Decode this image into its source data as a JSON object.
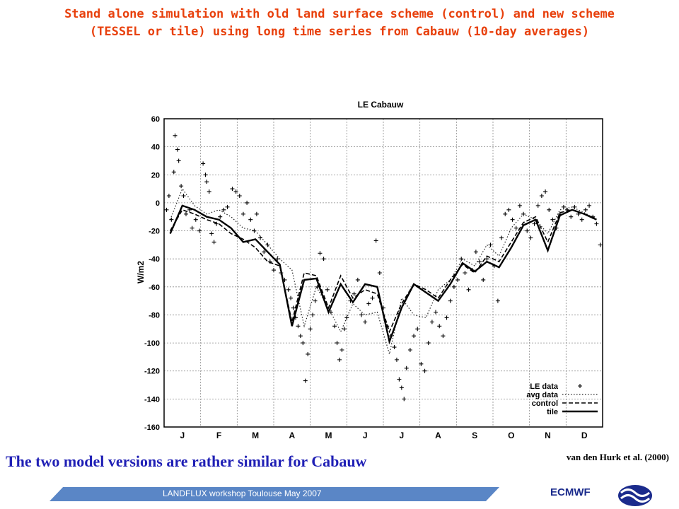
{
  "slide": {
    "title_line1": "Stand alone simulation with old land surface scheme (control) and new scheme",
    "title_line2": "(TESSEL or tile) using long time series from Cabauw (10-day averages)",
    "caption": "The two model versions are rather similar for Cabauw",
    "citation": "van den Hurk et al. (2000)",
    "footer": "LANDFLUX workshop Toulouse May 2007",
    "org": "ECMWF",
    "logo_icon": "ecmwf-logo-icon",
    "colors": {
      "title": "#e8400c",
      "caption": "#1f1fb5",
      "footer_bar": "#5a86c6",
      "org": "#1b2b8c"
    }
  },
  "chart_data": {
    "type": "line",
    "title": "LE Cabauw",
    "xlabel": "",
    "ylabel": "W/m2",
    "ylim": [
      -160,
      60
    ],
    "yticks": [
      60,
      40,
      20,
      0,
      -20,
      -40,
      -60,
      -80,
      -100,
      -120,
      -140,
      -160
    ],
    "xticks": [
      "J",
      "F",
      "M",
      "A",
      "M",
      "J",
      "J",
      "A",
      "S",
      "O",
      "N",
      "D"
    ],
    "xlim": [
      0,
      36
    ],
    "grid": true,
    "legend_position": "bottom-right",
    "x": [
      0.5,
      1.5,
      2.5,
      3.5,
      4.5,
      5.5,
      6.5,
      7.5,
      8.5,
      9.5,
      10.5,
      11.5,
      12.5,
      13.5,
      14.5,
      15.5,
      16.5,
      17.5,
      18.5,
      19.5,
      20.5,
      21.5,
      22.5,
      23.5,
      24.5,
      25.5,
      26.5,
      27.5,
      28.5,
      29.5,
      30.5,
      31.5,
      32.5,
      33.5,
      34.5,
      35.5
    ],
    "series": [
      {
        "name": "LE data",
        "style": "markers",
        "points": [
          [
            0.2,
            -5
          ],
          [
            0.4,
            5
          ],
          [
            0.6,
            -12
          ],
          [
            0.8,
            22
          ],
          [
            0.9,
            48
          ],
          [
            1.1,
            38
          ],
          [
            1.2,
            30
          ],
          [
            1.4,
            12
          ],
          [
            1.6,
            5
          ],
          [
            1.8,
            -8
          ],
          [
            2.1,
            -5
          ],
          [
            2.3,
            -18
          ],
          [
            2.6,
            -12
          ],
          [
            2.9,
            -20
          ],
          [
            3.2,
            28
          ],
          [
            3.4,
            20
          ],
          [
            3.5,
            15
          ],
          [
            3.7,
            8
          ],
          [
            3.9,
            -22
          ],
          [
            4.1,
            -28
          ],
          [
            4.3,
            -15
          ],
          [
            4.6,
            -10
          ],
          [
            4.9,
            -5
          ],
          [
            5.2,
            -3
          ],
          [
            5.6,
            10
          ],
          [
            5.9,
            8
          ],
          [
            6.2,
            5
          ],
          [
            6.5,
            -8
          ],
          [
            6.8,
            0
          ],
          [
            7.1,
            -12
          ],
          [
            7.4,
            -20
          ],
          [
            7.6,
            -8
          ],
          [
            7.9,
            -25
          ],
          [
            8.2,
            -35
          ],
          [
            8.5,
            -30
          ],
          [
            8.7,
            -42
          ],
          [
            9.0,
            -48
          ],
          [
            9.3,
            -40
          ],
          [
            9.6,
            -50
          ],
          [
            9.9,
            -55
          ],
          [
            10.2,
            -62
          ],
          [
            10.4,
            -68
          ],
          [
            10.6,
            -75
          ],
          [
            10.8,
            -82
          ],
          [
            11.0,
            -88
          ],
          [
            11.2,
            -95
          ],
          [
            11.4,
            -100
          ],
          [
            11.6,
            -127
          ],
          [
            11.8,
            -108
          ],
          [
            12.0,
            -90
          ],
          [
            12.2,
            -80
          ],
          [
            12.4,
            -70
          ],
          [
            12.6,
            -60
          ],
          [
            12.8,
            -36
          ],
          [
            13.1,
            -40
          ],
          [
            13.4,
            -62
          ],
          [
            13.7,
            -78
          ],
          [
            14.0,
            -88
          ],
          [
            14.2,
            -100
          ],
          [
            14.4,
            -112
          ],
          [
            14.6,
            -105
          ],
          [
            14.8,
            -90
          ],
          [
            15.0,
            -82
          ],
          [
            15.3,
            -70
          ],
          [
            15.6,
            -65
          ],
          [
            15.9,
            -55
          ],
          [
            16.2,
            -80
          ],
          [
            16.5,
            -85
          ],
          [
            16.8,
            -72
          ],
          [
            17.1,
            -68
          ],
          [
            17.4,
            -27
          ],
          [
            17.7,
            -50
          ],
          [
            18.0,
            -75
          ],
          [
            18.3,
            -88
          ],
          [
            18.6,
            -95
          ],
          [
            18.9,
            -103
          ],
          [
            19.1,
            -112
          ],
          [
            19.3,
            -126
          ],
          [
            19.5,
            -132
          ],
          [
            19.7,
            -140
          ],
          [
            19.9,
            -118
          ],
          [
            20.2,
            -105
          ],
          [
            20.5,
            -95
          ],
          [
            20.8,
            -90
          ],
          [
            21.1,
            -115
          ],
          [
            21.4,
            -120
          ],
          [
            21.7,
            -100
          ],
          [
            22.0,
            -85
          ],
          [
            22.3,
            -78
          ],
          [
            22.6,
            -88
          ],
          [
            22.9,
            -95
          ],
          [
            23.2,
            -82
          ],
          [
            23.5,
            -70
          ],
          [
            23.8,
            -60
          ],
          [
            24.1,
            -55
          ],
          [
            24.4,
            -40
          ],
          [
            24.7,
            -50
          ],
          [
            25.0,
            -62
          ],
          [
            25.3,
            -48
          ],
          [
            25.6,
            -35
          ],
          [
            25.9,
            -42
          ],
          [
            26.2,
            -55
          ],
          [
            26.5,
            -40
          ],
          [
            26.8,
            -30
          ],
          [
            27.1,
            -45
          ],
          [
            27.4,
            -70
          ],
          [
            27.7,
            -25
          ],
          [
            28.0,
            -8
          ],
          [
            28.3,
            -5
          ],
          [
            28.6,
            -12
          ],
          [
            28.9,
            -18
          ],
          [
            29.2,
            -2
          ],
          [
            29.5,
            -8
          ],
          [
            29.8,
            -20
          ],
          [
            30.1,
            -25
          ],
          [
            30.4,
            -15
          ],
          [
            30.7,
            -2
          ],
          [
            31.0,
            5
          ],
          [
            31.3,
            8
          ],
          [
            31.6,
            -5
          ],
          [
            31.9,
            -12
          ],
          [
            32.2,
            -18
          ],
          [
            32.5,
            -8
          ],
          [
            32.8,
            -3
          ],
          [
            33.1,
            -5
          ],
          [
            33.4,
            -10
          ],
          [
            33.7,
            -3
          ],
          [
            34.0,
            -8
          ],
          [
            34.3,
            -12
          ],
          [
            34.6,
            -5
          ],
          [
            34.9,
            -2
          ],
          [
            35.2,
            -10
          ],
          [
            35.5,
            -15
          ],
          [
            35.8,
            -30
          ]
        ]
      },
      {
        "name": "avg data",
        "style": "dotted",
        "values": [
          -12,
          10,
          -2,
          -8,
          -5,
          -10,
          -18,
          -20,
          -30,
          -40,
          -48,
          -88,
          -60,
          -75,
          -92,
          -72,
          -80,
          -78,
          -108,
          -68,
          -80,
          -82,
          -62,
          -55,
          -40,
          -45,
          -30,
          -38,
          -18,
          -8,
          -12,
          -22,
          -5,
          -3,
          -7,
          -12
        ]
      },
      {
        "name": "control",
        "style": "dashed",
        "values": [
          -20,
          -5,
          -8,
          -12,
          -15,
          -22,
          -26,
          -32,
          -42,
          -45,
          -85,
          -50,
          -52,
          -75,
          -52,
          -68,
          -62,
          -65,
          -92,
          -72,
          -58,
          -62,
          -68,
          -55,
          -44,
          -50,
          -38,
          -42,
          -28,
          -14,
          -10,
          -28,
          -7,
          -5,
          -8,
          -11
        ]
      },
      {
        "name": "tile",
        "style": "solid",
        "values": [
          -22,
          -2,
          -5,
          -10,
          -12,
          -18,
          -28,
          -26,
          -35,
          -44,
          -88,
          -55,
          -54,
          -78,
          -58,
          -71,
          -58,
          -60,
          -99,
          -75,
          -58,
          -64,
          -70,
          -58,
          -43,
          -49,
          -42,
          -46,
          -32,
          -16,
          -12,
          -34,
          -9,
          -5,
          -8,
          -12
        ]
      }
    ]
  }
}
